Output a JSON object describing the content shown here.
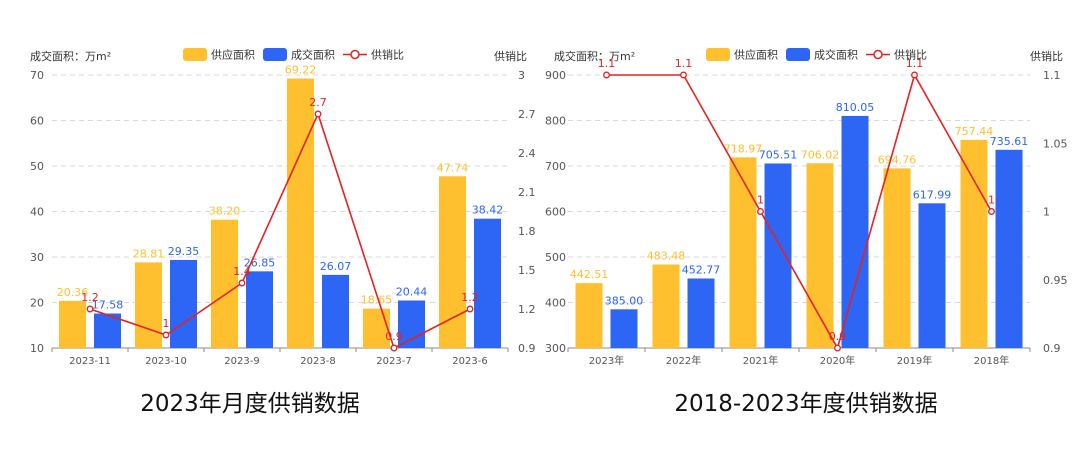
{
  "chart_data": [
    {
      "type": "bar",
      "title": "2023年月度供销数据",
      "ylabel_left": "成交面积：万m²",
      "ylabel_right": "供销比",
      "categories": [
        "2023-11",
        "2023-10",
        "2023-9",
        "2023-8",
        "2023-7",
        "2023-6"
      ],
      "series": [
        {
          "name": "供应面积",
          "type": "bar",
          "values": [
            20.36,
            28.81,
            38.2,
            69.22,
            18.65,
            47.74
          ],
          "labels": [
            "20.36",
            "28.81",
            "38.20",
            "69.22",
            "18.65",
            "47.74"
          ]
        },
        {
          "name": "成交面积",
          "type": "bar",
          "values": [
            17.58,
            29.35,
            26.85,
            26.07,
            20.44,
            38.42
          ],
          "labels": [
            "17.58",
            "29.35",
            "26.85",
            "26.07",
            "20.44",
            "38.42"
          ]
        },
        {
          "name": "供销比",
          "type": "line",
          "axis": "right",
          "values": [
            1.2,
            1,
            1.4,
            2.7,
            0.9,
            1.2
          ],
          "labels": [
            "1.2",
            "1",
            "1.4",
            "2.7",
            "0.9",
            "1.2"
          ]
        }
      ],
      "ylim": [
        10,
        70
      ],
      "y2lim": [
        0.9,
        3
      ],
      "left_ticks": [
        "10",
        "20",
        "30",
        "40",
        "50",
        "60",
        "70"
      ],
      "right_ticks": [
        "0.9",
        "1.2",
        "1.5",
        "1.8",
        "2.1",
        "2.4",
        "2.7",
        "3"
      ],
      "grid": true,
      "legend": "top-center"
    },
    {
      "type": "bar",
      "title": "2018-2023年度供销数据",
      "ylabel_left": "成交面积：万m²",
      "ylabel_right": "供销比",
      "categories": [
        "2023年",
        "2022年",
        "2021年",
        "2020年",
        "2019年",
        "2018年"
      ],
      "series": [
        {
          "name": "供应面积",
          "type": "bar",
          "values": [
            442.51,
            483.48,
            718.97,
            706.02,
            694.76,
            757.44
          ],
          "labels": [
            "442.51",
            "483.48",
            "718.97",
            "706.02",
            "694.76",
            "757.44"
          ]
        },
        {
          "name": "成交面积",
          "type": "bar",
          "values": [
            385.0,
            452.77,
            705.51,
            810.05,
            617.99,
            735.61
          ],
          "labels": [
            "385.00",
            "452.77",
            "705.51",
            "810.05",
            "617.99",
            "735.61"
          ]
        },
        {
          "name": "供销比",
          "type": "line",
          "axis": "right",
          "values": [
            1.1,
            1.1,
            1,
            0.9,
            1.1,
            1
          ],
          "labels": [
            "1.1",
            "1.1",
            "1",
            "0.9",
            "1.1",
            "1"
          ]
        }
      ],
      "ylim": [
        300,
        900
      ],
      "y2lim": [
        0.9,
        1.1
      ],
      "left_ticks": [
        "300",
        "400",
        "500",
        "600",
        "700",
        "800",
        "900"
      ],
      "right_ticks": [
        "0.9",
        "0.95",
        "1",
        "1.05",
        "1.1"
      ],
      "grid": true,
      "legend": "top-center"
    }
  ],
  "colors": {
    "supply": "#FEC02F",
    "deal": "#2D66F5",
    "ratio": "#E52222",
    "grid": "#D9D9D9",
    "axis": "#888888",
    "text": "#555555"
  }
}
